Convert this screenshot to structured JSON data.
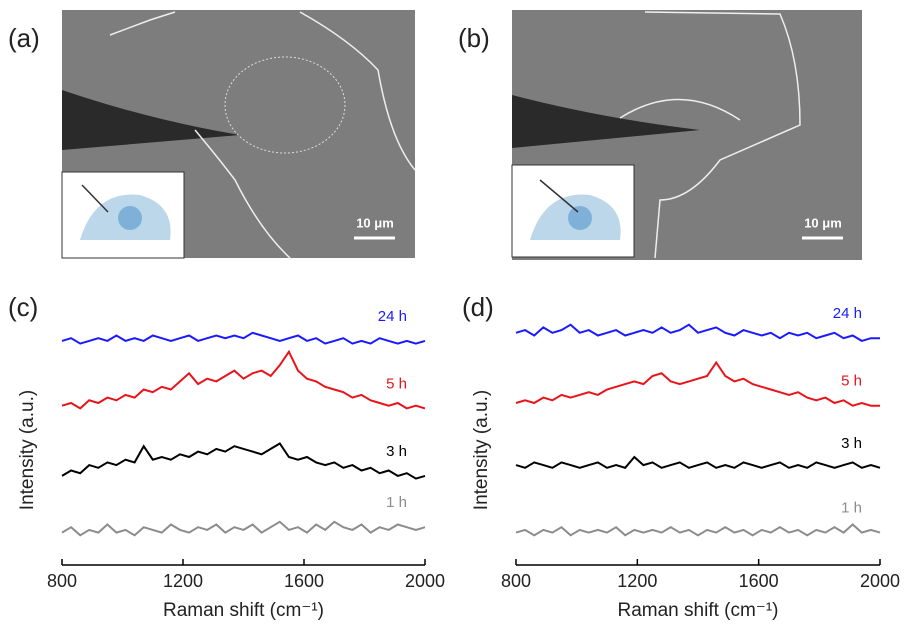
{
  "images": [
    {
      "label": "(a)",
      "scale_bar": "10 μm"
    },
    {
      "label": "(b)",
      "scale_bar": "10 μm"
    }
  ],
  "chart_data": [
    {
      "type": "line",
      "panel_label": "(c)",
      "x_label": "Raman shift (cm⁻¹)",
      "y_label": "Intensity (a.u.)",
      "xlim": [
        800,
        2000
      ],
      "xticks": [
        800,
        1200,
        1600,
        2000
      ],
      "ylim": [
        0,
        10
      ],
      "x": [
        800,
        830,
        860,
        890,
        920,
        950,
        980,
        1010,
        1040,
        1070,
        1100,
        1130,
        1160,
        1190,
        1220,
        1250,
        1280,
        1310,
        1340,
        1370,
        1400,
        1430,
        1460,
        1490,
        1520,
        1550,
        1580,
        1610,
        1640,
        1670,
        1700,
        1730,
        1760,
        1790,
        1820,
        1850,
        1880,
        1910,
        1940,
        1970,
        2000
      ],
      "series": [
        {
          "name": "24 h",
          "color": "#1a1aff",
          "values": [
            8.3,
            8.4,
            8.2,
            8.3,
            8.4,
            8.3,
            8.5,
            8.3,
            8.4,
            8.3,
            8.5,
            8.4,
            8.3,
            8.4,
            8.5,
            8.3,
            8.4,
            8.5,
            8.4,
            8.5,
            8.4,
            8.6,
            8.5,
            8.4,
            8.3,
            8.4,
            8.5,
            8.3,
            8.4,
            8.2,
            8.3,
            8.4,
            8.2,
            8.3,
            8.2,
            8.4,
            8.3,
            8.2,
            8.3,
            8.2,
            8.3
          ]
        },
        {
          "name": "5 h",
          "color": "#e8141a",
          "values": [
            5.9,
            6.0,
            5.8,
            6.1,
            6.0,
            6.2,
            6.1,
            6.3,
            6.2,
            6.5,
            6.4,
            6.6,
            6.5,
            6.8,
            7.1,
            6.7,
            6.9,
            6.8,
            7.0,
            7.2,
            6.9,
            7.1,
            7.2,
            7.0,
            7.4,
            7.9,
            7.2,
            6.9,
            6.8,
            6.6,
            6.5,
            6.4,
            6.2,
            6.3,
            6.1,
            6.0,
            5.9,
            6.0,
            5.8,
            5.9,
            5.8
          ]
        },
        {
          "name": "3 h",
          "color": "#000000",
          "values": [
            3.3,
            3.5,
            3.4,
            3.7,
            3.6,
            3.8,
            3.7,
            3.9,
            3.8,
            4.4,
            3.9,
            4.0,
            3.9,
            4.1,
            4.0,
            4.2,
            4.1,
            4.3,
            4.2,
            4.4,
            4.3,
            4.2,
            4.1,
            4.3,
            4.5,
            4.0,
            3.9,
            4.0,
            3.8,
            3.7,
            3.8,
            3.6,
            3.7,
            3.5,
            3.6,
            3.4,
            3.5,
            3.3,
            3.4,
            3.2,
            3.3
          ]
        },
        {
          "name": "1 h",
          "color": "#8c8c8c",
          "values": [
            1.2,
            1.4,
            1.1,
            1.3,
            1.2,
            1.5,
            1.2,
            1.3,
            1.1,
            1.4,
            1.3,
            1.2,
            1.5,
            1.3,
            1.2,
            1.4,
            1.3,
            1.5,
            1.2,
            1.4,
            1.3,
            1.5,
            1.2,
            1.4,
            1.6,
            1.3,
            1.4,
            1.2,
            1.5,
            1.3,
            1.6,
            1.4,
            1.3,
            1.5,
            1.2,
            1.4,
            1.3,
            1.5,
            1.4,
            1.3,
            1.4
          ]
        }
      ]
    },
    {
      "type": "line",
      "panel_label": "(d)",
      "x_label": "Raman shift (cm⁻¹)",
      "y_label": "Intensity (a.u.)",
      "xlim": [
        800,
        2000
      ],
      "xticks": [
        800,
        1200,
        1600,
        2000
      ],
      "ylim": [
        0,
        10
      ],
      "x": [
        800,
        830,
        860,
        890,
        920,
        950,
        980,
        1010,
        1040,
        1070,
        1100,
        1130,
        1160,
        1190,
        1220,
        1250,
        1280,
        1310,
        1340,
        1370,
        1400,
        1430,
        1460,
        1490,
        1520,
        1550,
        1580,
        1610,
        1640,
        1670,
        1700,
        1730,
        1760,
        1790,
        1820,
        1850,
        1880,
        1910,
        1940,
        1970,
        2000
      ],
      "series": [
        {
          "name": "24 h",
          "color": "#1a1aff",
          "values": [
            8.6,
            8.7,
            8.5,
            8.8,
            8.6,
            8.7,
            8.9,
            8.6,
            8.7,
            8.5,
            8.6,
            8.7,
            8.5,
            8.6,
            8.7,
            8.6,
            8.8,
            8.6,
            8.7,
            8.9,
            8.6,
            8.7,
            8.8,
            8.6,
            8.5,
            8.7,
            8.6,
            8.5,
            8.6,
            8.4,
            8.6,
            8.5,
            8.6,
            8.4,
            8.5,
            8.6,
            8.4,
            8.5,
            8.3,
            8.4,
            8.4
          ]
        },
        {
          "name": "5 h",
          "color": "#e8141a",
          "values": [
            6.0,
            6.1,
            6.0,
            6.2,
            6.1,
            6.3,
            6.2,
            6.3,
            6.4,
            6.3,
            6.5,
            6.6,
            6.7,
            6.8,
            6.7,
            7.0,
            7.1,
            6.8,
            6.7,
            6.8,
            6.9,
            7.0,
            7.5,
            7.0,
            6.8,
            6.9,
            6.7,
            6.6,
            6.5,
            6.4,
            6.3,
            6.4,
            6.2,
            6.1,
            6.2,
            6.0,
            6.1,
            5.9,
            6.0,
            5.9,
            5.9
          ]
        },
        {
          "name": "3 h",
          "color": "#000000",
          "values": [
            3.7,
            3.6,
            3.8,
            3.7,
            3.6,
            3.8,
            3.7,
            3.6,
            3.7,
            3.8,
            3.6,
            3.7,
            3.6,
            4.0,
            3.7,
            3.8,
            3.6,
            3.7,
            3.8,
            3.6,
            3.7,
            3.8,
            3.6,
            3.7,
            3.6,
            3.8,
            3.7,
            3.6,
            3.7,
            3.8,
            3.6,
            3.7,
            3.6,
            3.8,
            3.7,
            3.6,
            3.7,
            3.8,
            3.6,
            3.7,
            3.6
          ]
        },
        {
          "name": "1 h",
          "color": "#8c8c8c",
          "values": [
            1.2,
            1.3,
            1.1,
            1.3,
            1.2,
            1.4,
            1.1,
            1.3,
            1.2,
            1.3,
            1.2,
            1.4,
            1.1,
            1.3,
            1.2,
            1.3,
            1.2,
            1.4,
            1.2,
            1.3,
            1.1,
            1.3,
            1.2,
            1.4,
            1.2,
            1.3,
            1.1,
            1.3,
            1.2,
            1.4,
            1.2,
            1.3,
            1.1,
            1.3,
            1.2,
            1.4,
            1.2,
            1.5,
            1.2,
            1.3,
            1.2
          ]
        }
      ]
    }
  ]
}
